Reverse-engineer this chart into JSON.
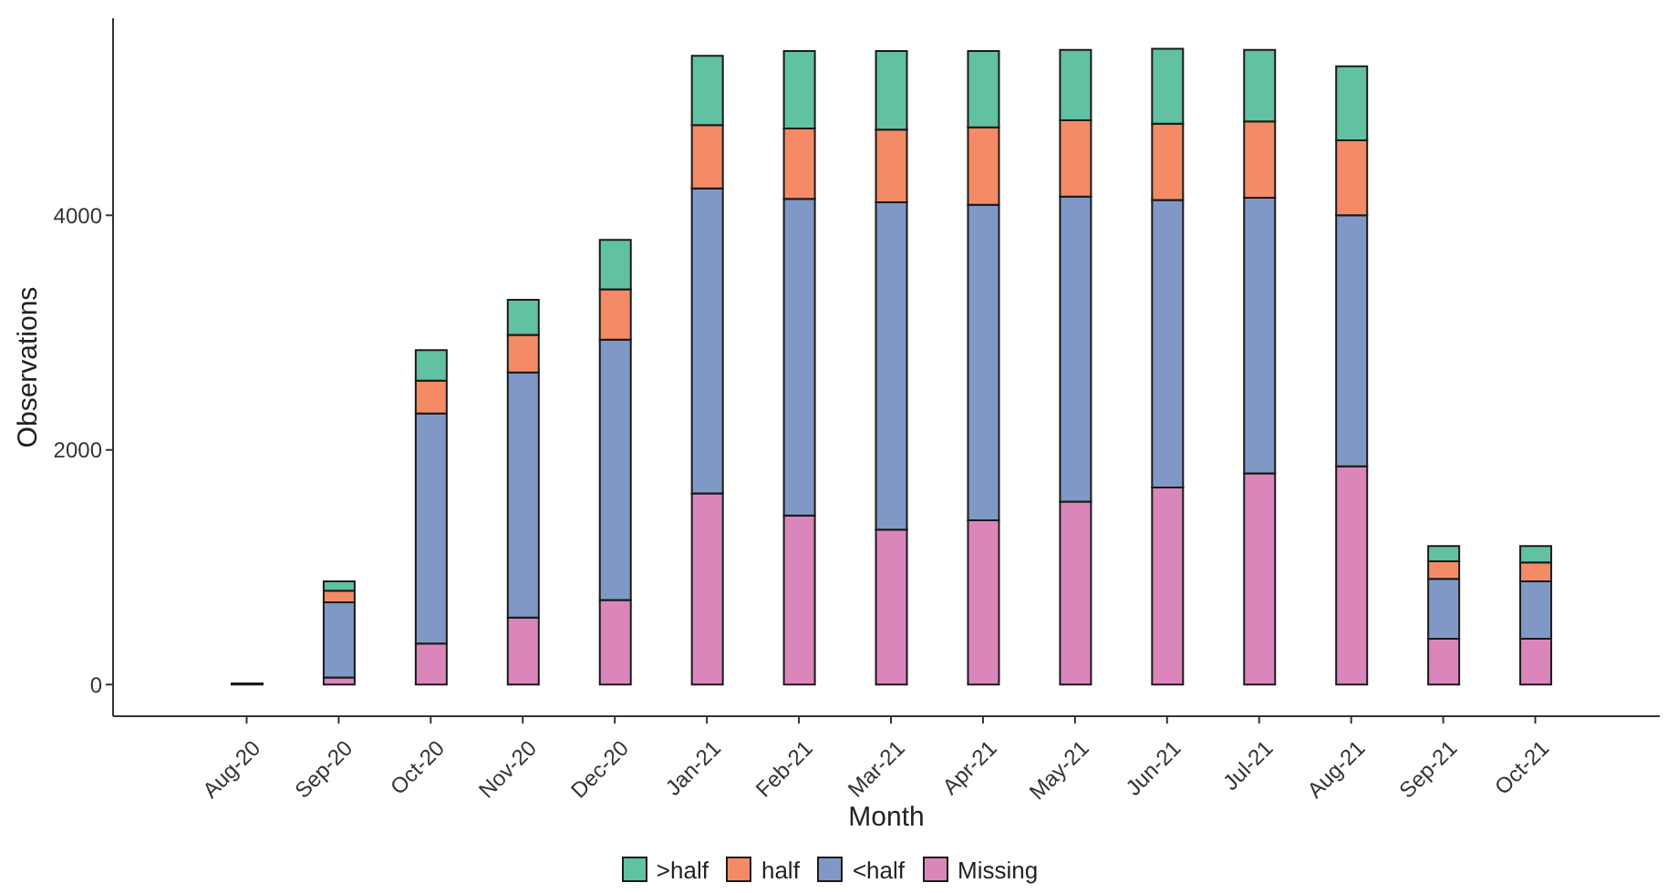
{
  "chart_data": {
    "type": "bar",
    "stacked": true,
    "xlabel": "Month",
    "ylabel": "Observations",
    "categories": [
      "Aug-20",
      "Sep-20",
      "Oct-20",
      "Nov-20",
      "Dec-20",
      "Jan-21",
      "Feb-21",
      "Mar-21",
      "Apr-21",
      "May-21",
      "Jun-21",
      "Jul-21",
      "Aug-21",
      "Sep-21",
      "Oct-21"
    ],
    "series": [
      {
        "name": "Missing",
        "color": "#db86bb",
        "values": [
          0,
          60,
          350,
          570,
          720,
          1630,
          1440,
          1320,
          1400,
          1560,
          1680,
          1800,
          1860,
          390,
          390
        ]
      },
      {
        "name": "<half",
        "color": "#8098c6",
        "values": [
          10,
          640,
          1960,
          2090,
          2220,
          2600,
          2700,
          2790,
          2690,
          2600,
          2450,
          2350,
          2140,
          510,
          490
        ]
      },
      {
        "name": "half",
        "color": "#f48b66",
        "values": [
          0,
          100,
          280,
          320,
          430,
          540,
          600,
          620,
          660,
          650,
          650,
          650,
          640,
          150,
          160
        ]
      },
      {
        "name": ">half",
        "color": "#60c1a3",
        "values": [
          0,
          80,
          260,
          300,
          420,
          590,
          660,
          670,
          650,
          600,
          640,
          610,
          630,
          130,
          140
        ]
      }
    ],
    "ylim": [
      -270,
      5680
    ],
    "yticks": [
      0,
      2000,
      4000
    ],
    "legend": "bottom"
  }
}
